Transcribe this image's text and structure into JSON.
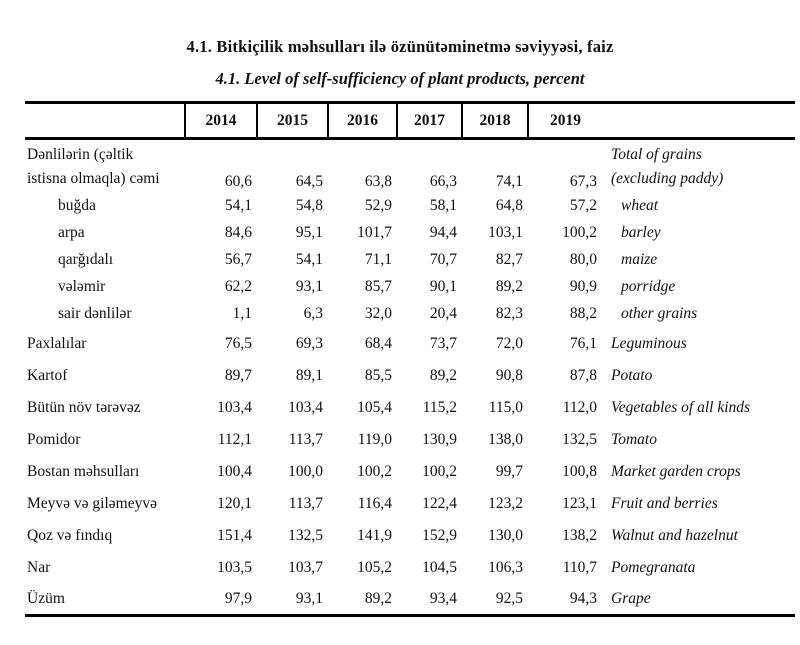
{
  "page": {
    "title_az": "4.1. Bitkiçilik məhsulları ilə özünütəminetmə səviyyəsi, faiz",
    "title_en": "4.1. Level of self-sufficiency of plant products, percent"
  },
  "table": {
    "years": [
      "2014",
      "2015",
      "2016",
      "2017",
      "2018",
      "2019"
    ],
    "rows": [
      {
        "az_lines": [
          "Dənlilərin (çəltik",
          "istisna olmaqla) cəmi"
        ],
        "en_lines": [
          "Total of grains",
          "(excluding paddy)"
        ],
        "values": [
          "60,6",
          "64,5",
          "63,8",
          "66,3",
          "74,1",
          "67,3"
        ],
        "indent": false
      },
      {
        "az": "buğda",
        "en": "wheat",
        "values": [
          "54,1",
          "54,8",
          "52,9",
          "58,1",
          "64,8",
          "57,2"
        ],
        "indent": true
      },
      {
        "az": "arpa",
        "en": "barley",
        "values": [
          "84,6",
          "95,1",
          "101,7",
          "94,4",
          "103,1",
          "100,2"
        ],
        "indent": true
      },
      {
        "az": "qarğıdalı",
        "en": "maize",
        "values": [
          "56,7",
          "54,1",
          "71,1",
          "70,7",
          "82,7",
          "80,0"
        ],
        "indent": true
      },
      {
        "az": "vələmir",
        "en": "porridge",
        "values": [
          "62,2",
          "93,1",
          "85,7",
          "90,1",
          "89,2",
          "90,9"
        ],
        "indent": true
      },
      {
        "az": "sair dənlilər",
        "en": "other grains",
        "values": [
          "1,1",
          "6,3",
          "32,0",
          "20,4",
          "82,3",
          "88,2"
        ],
        "indent": true
      },
      {
        "az": "Paxlalılar",
        "en": "Leguminous",
        "values": [
          "76,5",
          "69,3",
          "68,4",
          "73,7",
          "72,0",
          "76,1"
        ],
        "indent": false
      },
      {
        "az": "Kartof",
        "en": "Potato",
        "values": [
          "89,7",
          "89,1",
          "85,5",
          "89,2",
          "90,8",
          "87,8"
        ],
        "indent": false
      },
      {
        "az": "Bütün növ tərəvəz",
        "en": "Vegetables of all kinds",
        "values": [
          "103,4",
          "103,4",
          "105,4",
          "115,2",
          "115,0",
          "112,0"
        ],
        "indent": false
      },
      {
        "az": "Pomidor",
        "en": "Tomato",
        "values": [
          "112,1",
          "113,7",
          "119,0",
          "130,9",
          "138,0",
          "132,5"
        ],
        "indent": false
      },
      {
        "az": "Bostan məhsulları",
        "en": "Market garden crops",
        "values": [
          "100,4",
          "100,0",
          "100,2",
          "100,2",
          "99,7",
          "100,8"
        ],
        "indent": false
      },
      {
        "az": "Meyvə və giləmeyvə",
        "en": "Fruit and berries",
        "values": [
          "120,1",
          "113,7",
          "116,4",
          "122,4",
          "123,2",
          "123,1"
        ],
        "indent": false
      },
      {
        "az": "Qoz və fındıq",
        "en": "Walnut and hazelnut",
        "values": [
          "151,4",
          "132,5",
          "141,9",
          "152,9",
          "130,0",
          "138,2"
        ],
        "indent": false
      },
      {
        "az": "Nar",
        "en": "Pomegranata",
        "values": [
          "103,5",
          "103,7",
          "105,2",
          "104,5",
          "106,3",
          "110,7"
        ],
        "indent": false
      },
      {
        "az": "Üzüm",
        "en": "Grape",
        "values": [
          "97,9",
          "93,1",
          "89,2",
          "93,4",
          "92,5",
          "94,3"
        ],
        "indent": false
      }
    ]
  }
}
